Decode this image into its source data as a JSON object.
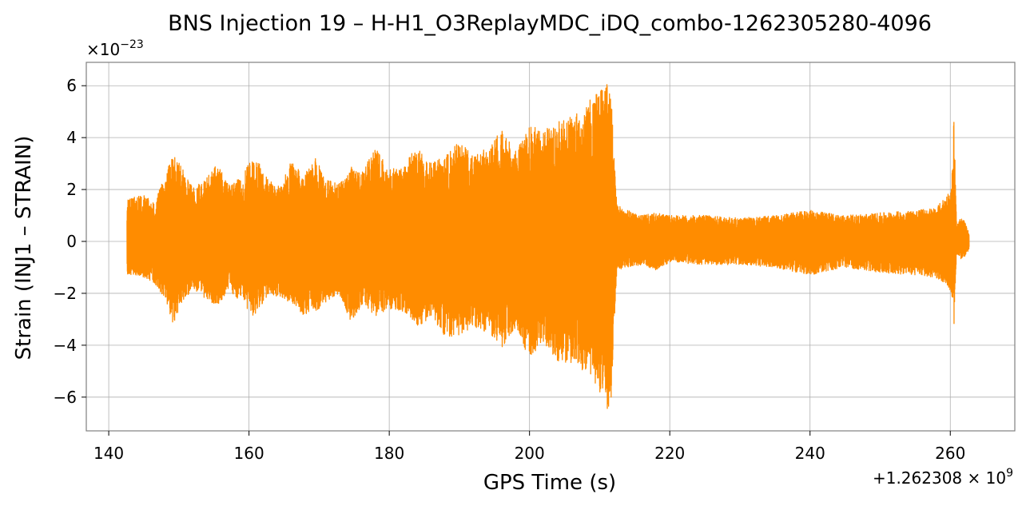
{
  "chart_data": {
    "type": "line",
    "title": "BNS Injection 19 – H-H1_O3ReplayMDC_iDQ_combo-1262305280-4096",
    "xlabel": "GPS Time (s)",
    "ylabel": "Strain (INJ1 – STRAIN)",
    "x_offset_label": "+1.262308 × 10^9",
    "y_scale_label": "×10^−23",
    "x_ticks": [
      140,
      160,
      180,
      200,
      220,
      240,
      260
    ],
    "x_tick_labels": [
      "140",
      "160",
      "180",
      "200",
      "220",
      "240",
      "260"
    ],
    "y_ticks": [
      -6,
      -4,
      -2,
      0,
      2,
      4,
      6
    ],
    "y_tick_labels": [
      "−6",
      "−4",
      "−2",
      "0",
      "2",
      "4",
      "6"
    ],
    "xlim": [
      136.8,
      269.2
    ],
    "ylim": [
      -7.3,
      6.9
    ],
    "grid": true,
    "line_color": "#ff8c00",
    "series": [
      {
        "name": "",
        "x_start": 142.6,
        "x_end": 262.7,
        "envelope": {
          "x": [
            142.6,
            143.5,
            145,
            146.5,
            148,
            149.2,
            150.5,
            152,
            153.8,
            155.5,
            157,
            158.8,
            160.5,
            161.5,
            162.8,
            164.5,
            166,
            167.8,
            169.5,
            171,
            172.8,
            174.5,
            176,
            178,
            180,
            182,
            184,
            186,
            188,
            190,
            192,
            194,
            196,
            198,
            200,
            202,
            204,
            206,
            208,
            209.5,
            210.8,
            211.6,
            212.1,
            212.5,
            214,
            216,
            218,
            220,
            225,
            230,
            235,
            240,
            245,
            250,
            255,
            258,
            259.5,
            260.2,
            260.5,
            260.9,
            261.5,
            262,
            262.7
          ],
          "upper": [
            1.6,
            1.7,
            1.8,
            1.5,
            2.5,
            3.4,
            2.8,
            2.1,
            2.4,
            3.0,
            2.2,
            2.5,
            3.3,
            3.0,
            2.4,
            2.1,
            3.1,
            2.6,
            3.2,
            2.4,
            2.2,
            2.9,
            2.6,
            3.6,
            2.8,
            2.9,
            3.7,
            3.0,
            3.3,
            3.9,
            3.3,
            3.6,
            4.3,
            3.5,
            4.4,
            4.4,
            4.6,
            4.8,
            5.2,
            5.8,
            6.2,
            5.9,
            3.0,
            1.4,
            1.2,
            1.0,
            1.1,
            1.0,
            1.0,
            0.9,
            1.0,
            1.2,
            1.0,
            1.1,
            1.2,
            1.3,
            1.8,
            2.1,
            5.0,
            0.6,
            0.9,
            0.8,
            0.3
          ],
          "lower": [
            -1.3,
            -1.3,
            -1.4,
            -1.6,
            -2.2,
            -3.2,
            -2.3,
            -1.9,
            -2.2,
            -2.5,
            -1.9,
            -2.3,
            -2.9,
            -2.6,
            -2.0,
            -2.2,
            -2.4,
            -2.9,
            -2.7,
            -2.4,
            -2.0,
            -3.1,
            -2.5,
            -2.9,
            -2.6,
            -2.7,
            -3.3,
            -2.9,
            -3.7,
            -3.6,
            -3.3,
            -3.5,
            -4.1,
            -3.4,
            -4.5,
            -3.9,
            -4.6,
            -4.8,
            -5.0,
            -5.6,
            -6.5,
            -6.6,
            -3.0,
            -1.1,
            -1.0,
            -0.9,
            -1.1,
            -0.8,
            -0.9,
            -0.9,
            -1.0,
            -1.3,
            -1.0,
            -1.2,
            -1.3,
            -1.4,
            -1.7,
            -2.0,
            -3.5,
            -0.5,
            -0.7,
            -0.6,
            -0.3
          ]
        }
      }
    ]
  }
}
